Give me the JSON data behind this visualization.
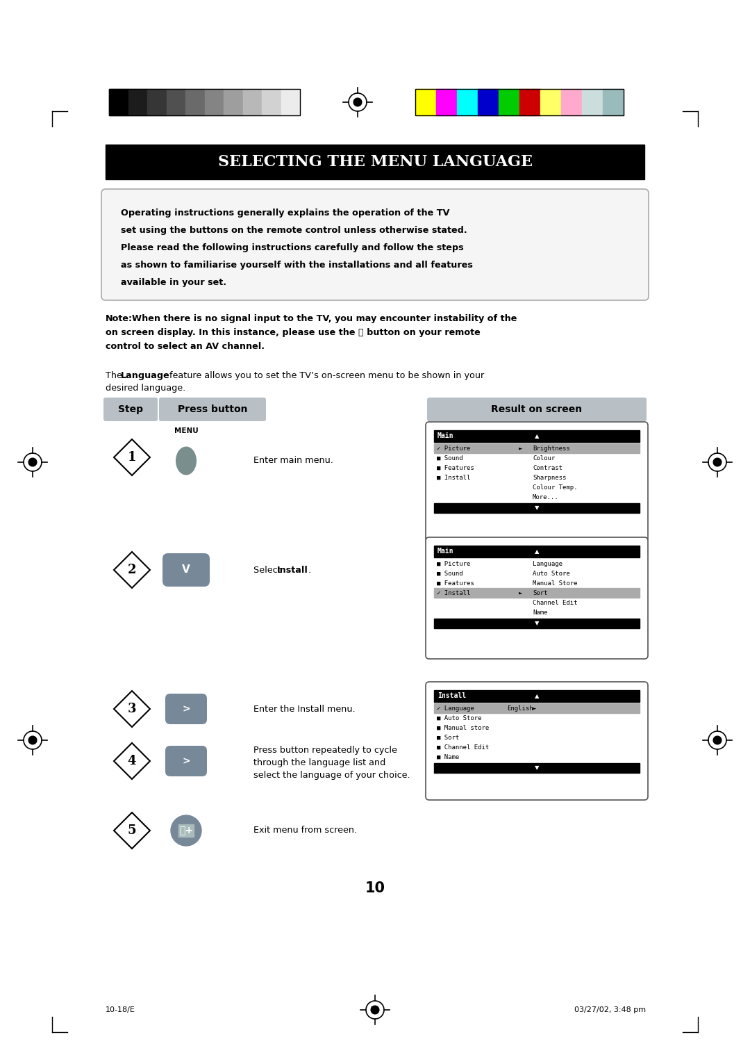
{
  "title": "SELECTING THE MENU LANGUAGE",
  "bg_color": "#ffffff",
  "title_bg": "#000000",
  "title_fg": "#ffffff",
  "box_intro_text": [
    "Operating instructions generally explains the operation of the TV",
    "set using the buttons on the remote control unless otherwise stated.",
    "Please read the following instructions carefully and follow the steps",
    "as shown to familiarise yourself with the installations and all features",
    "available in your set."
  ],
  "footer_left": "10-18/E",
  "footer_center": "10",
  "footer_right": "03/27/02, 3:48 pm",
  "color_strip_dark": [
    "#000000",
    "#1c1c1c",
    "#363636",
    "#505050",
    "#6a6a6a",
    "#848484",
    "#9e9e9e",
    "#b8b8b8",
    "#d2d2d2",
    "#ececec"
  ],
  "color_strip_bright": [
    "#ffff00",
    "#ff00ff",
    "#00ffff",
    "#0000cc",
    "#00cc00",
    "#cc0000",
    "#ffff66",
    "#ffaacc",
    "#ccdddd",
    "#99bbbb"
  ]
}
